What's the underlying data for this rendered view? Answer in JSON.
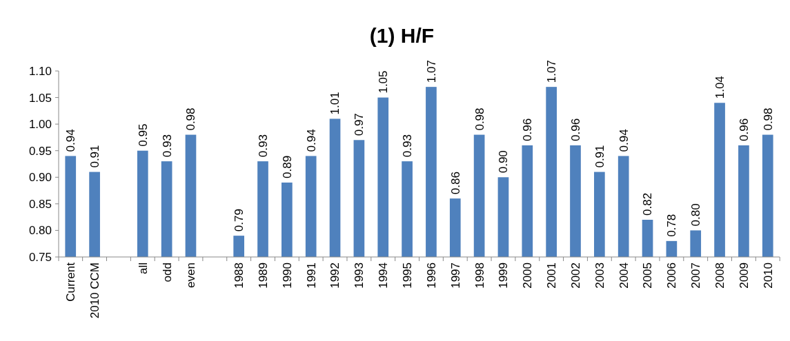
{
  "chart_data": {
    "type": "bar",
    "title": "(1) H/F",
    "categories": [
      "Current",
      "2010 CCM",
      null,
      "all",
      "odd",
      "even",
      null,
      "1988",
      "1989",
      "1990",
      "1991",
      "1992",
      "1993",
      "1994",
      "1995",
      "1996",
      "1997",
      "1998",
      "1999",
      "2000",
      "2001",
      "2002",
      "2003",
      "2004",
      "2005",
      "2006",
      "2007",
      "2008",
      "2009",
      "2010"
    ],
    "values": [
      0.94,
      0.91,
      null,
      0.95,
      0.93,
      0.98,
      null,
      0.79,
      0.93,
      0.89,
      0.94,
      1.01,
      0.97,
      1.05,
      0.93,
      1.07,
      0.86,
      0.98,
      0.9,
      0.96,
      1.07,
      0.96,
      0.91,
      0.94,
      0.82,
      0.78,
      0.8,
      1.04,
      0.96,
      0.98
    ],
    "value_labels": [
      "0.94",
      "0.91",
      null,
      "0.95",
      "0.93",
      "0.98",
      null,
      "0.79",
      "0.93",
      "0.89",
      "0.94",
      "1.01",
      "0.97",
      "1.05",
      "0.93",
      "1.07",
      "0.86",
      "0.98",
      "0.90",
      "0.96",
      "1.07",
      "0.96",
      "0.91",
      "0.94",
      "0.82",
      "0.78",
      "0.80",
      "1.04",
      "0.96",
      "0.98"
    ],
    "color": "#4f81bd",
    "ylim": [
      0.75,
      1.1
    ],
    "yticks": [
      {
        "value": 0.75,
        "label": "0.75"
      },
      {
        "value": 0.8,
        "label": "0.80"
      },
      {
        "value": 0.85,
        "label": "0.85"
      },
      {
        "value": 0.9,
        "label": "0.90"
      },
      {
        "value": 0.95,
        "label": "0.95"
      },
      {
        "value": 1.0,
        "label": "1.00"
      },
      {
        "value": 1.05,
        "label": "1.05"
      },
      {
        "value": 1.1,
        "label": "1.10"
      }
    ]
  }
}
